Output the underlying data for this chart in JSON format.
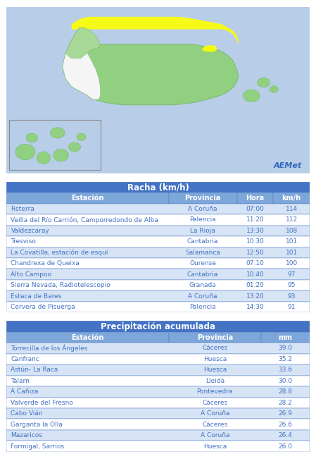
{
  "racha_title": "Racha (km/h)",
  "racha_col_headers": [
    "Estación",
    "Provincia",
    "Hora",
    "km/h"
  ],
  "racha_rows": [
    [
      "Fisterra",
      "A Coruña",
      "07:00",
      "114"
    ],
    [
      "Veilla del Río Carrión, Camporredondo de Alba",
      "Palencia",
      "11:20",
      "112"
    ],
    [
      "Valdezcaray",
      "La Rioja",
      "13:30",
      "108"
    ],
    [
      "Tresviso",
      "Cantabria",
      "10:30",
      "101"
    ],
    [
      "La Covatilla, estación de esquí",
      "Salamanca",
      "12:50",
      "101"
    ],
    [
      "Chandrexa de Queixa",
      "Ourense",
      "07:10",
      "100"
    ],
    [
      "Alto Campoo",
      "Cantabria",
      "10:40",
      "97"
    ],
    [
      "Sierra Nevada, Radiotelescopio",
      "Granada",
      "01:20",
      "95"
    ],
    [
      "Estaca de Bares",
      "A Coruña",
      "13:20",
      "93"
    ],
    [
      "Cervera de Pisuerga",
      "Palencia",
      "14:30",
      "91"
    ]
  ],
  "precip_title": "Precipitación acumulada",
  "precip_col_headers": [
    "Estación",
    "Provincia",
    "mm"
  ],
  "precip_rows": [
    [
      "Torrecilla de los Ángeles",
      "Cáceres",
      "39.0"
    ],
    [
      "Canfranc",
      "Huesca",
      "35.2"
    ],
    [
      "Astún- La Raca",
      "Huesca",
      "33.6"
    ],
    [
      "Talarn",
      "Lleida",
      "30.0"
    ],
    [
      "A Cañiza",
      "Pontevedra",
      "28.8"
    ],
    [
      "Valverde del Fresno",
      "Cáceres",
      "28.2"
    ],
    [
      "Cabo Vián",
      "A Coruña",
      "26.9"
    ],
    [
      "Garganta la Olla",
      "Cáceres",
      "26.6"
    ],
    [
      "Mazaricos",
      "A Coruña",
      "26.4"
    ],
    [
      "Formigal, Sarrios",
      "Huesca",
      "26.0"
    ]
  ],
  "header_bg": "#4472C4",
  "subheader_bg": "#7DA6D9",
  "row_odd_bg": "#FFFFFF",
  "row_even_bg": "#D6E4F5",
  "header_text_color": "#FFFFFF",
  "subheader_text_color": "#FFFFFF",
  "row_text_color": "#4472C4",
  "table_border_color": "#4472C4",
  "fig_bg": "#FFFFFF",
  "ocean_color": "#B8CEE8",
  "spain_green": "#90D080",
  "spain_edge": "#70B060",
  "yellow_warn": "#FFFF00",
  "portugal_white": "#F0F0F0",
  "aemet_logo_colors": [
    "#2060C0",
    "#E04020",
    "#40A030"
  ]
}
